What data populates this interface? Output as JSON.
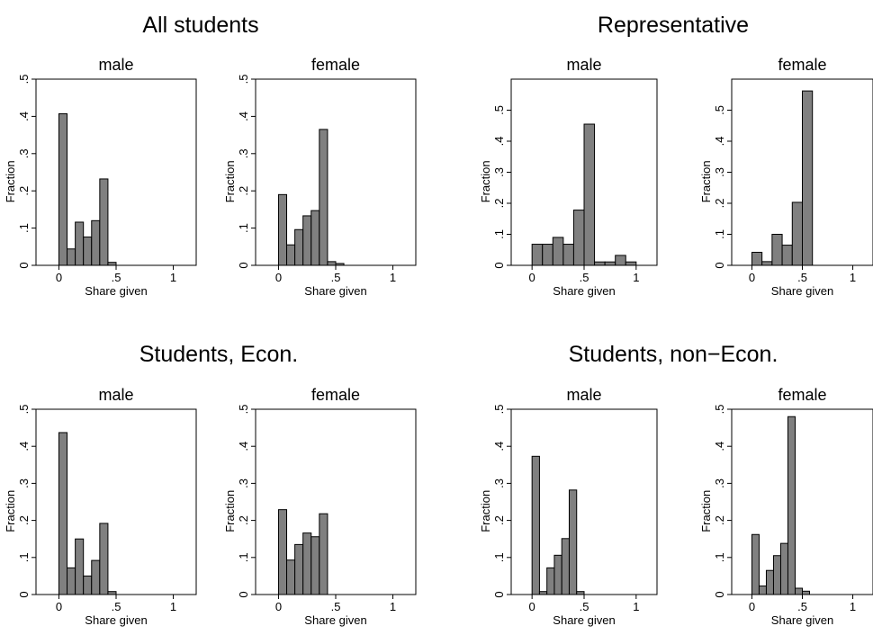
{
  "chart_data": [
    {
      "type": "bar",
      "title": "All students",
      "panels": [
        {
          "title": "male",
          "xlabel": "Share given",
          "ylabel": "Fraction",
          "xlim": [
            0,
            1
          ],
          "ylim": [
            0,
            0.5
          ],
          "xticks": [
            "0",
            ".5",
            "1"
          ],
          "yticks": [
            "0",
            ".1",
            ".2",
            ".3",
            ".4",
            ".5"
          ],
          "bins": [
            0,
            0.0714,
            0.1429,
            0.2143,
            0.2857,
            0.3571,
            0.4286,
            0.5,
            0.5714
          ],
          "values": [
            0.407,
            0.044,
            0.116,
            0.076,
            0.12,
            0.232,
            0.008,
            0.0
          ]
        },
        {
          "title": "female",
          "xlabel": "Share given",
          "ylabel": "Fraction",
          "xlim": [
            0,
            1
          ],
          "ylim": [
            0,
            0.5
          ],
          "xticks": [
            "0",
            ".5",
            "1"
          ],
          "yticks": [
            "0",
            ".1",
            ".2",
            ".3",
            ".4",
            ".5"
          ],
          "bins": [
            0,
            0.0714,
            0.1429,
            0.2143,
            0.2857,
            0.3571,
            0.4286,
            0.5,
            0.5714,
            0.6429
          ],
          "values": [
            0.19,
            0.055,
            0.096,
            0.133,
            0.147,
            0.365,
            0.01,
            0.005,
            0.0
          ]
        }
      ]
    },
    {
      "type": "bar",
      "title": "Representative",
      "panels": [
        {
          "title": "male",
          "xlabel": "Share given",
          "ylabel": "Fraction",
          "xlim": [
            0,
            1
          ],
          "ylim": [
            0,
            0.6
          ],
          "xticks": [
            "0",
            ".5",
            "1"
          ],
          "yticks": [
            "0",
            ".1",
            ".2",
            ".3",
            ".4",
            ".5"
          ],
          "bins": [
            0,
            0.1,
            0.2,
            0.3,
            0.4,
            0.5,
            0.6,
            0.7,
            0.8,
            0.9,
            1.0
          ],
          "values": [
            0.068,
            0.068,
            0.09,
            0.068,
            0.178,
            0.455,
            0.011,
            0.011,
            0.032,
            0.011,
            0.011
          ]
        },
        {
          "title": "female",
          "xlabel": "Share given",
          "ylabel": "Fraction",
          "xlim": [
            0,
            1
          ],
          "ylim": [
            0,
            0.6
          ],
          "xticks": [
            "0",
            ".5",
            "1"
          ],
          "yticks": [
            "0",
            ".1",
            ".2",
            ".3",
            ".4",
            ".5"
          ],
          "bins": [
            0,
            0.1,
            0.2,
            0.3,
            0.4,
            0.5,
            0.6
          ],
          "values": [
            0.042,
            0.012,
            0.1,
            0.065,
            0.203,
            0.562,
            0.012
          ]
        }
      ]
    },
    {
      "type": "bar",
      "title": "Students, Econ.",
      "panels": [
        {
          "title": "male",
          "xlabel": "Share given",
          "ylabel": "Fraction",
          "xlim": [
            0,
            1
          ],
          "ylim": [
            0,
            0.5
          ],
          "xticks": [
            "0",
            ".5",
            "1"
          ],
          "yticks": [
            "0",
            ".1",
            ".2",
            ".3",
            ".4",
            ".5"
          ],
          "bins": [
            0,
            0.0714,
            0.1429,
            0.2143,
            0.2857,
            0.3571,
            0.4286,
            0.5,
            0.5714
          ],
          "values": [
            0.437,
            0.072,
            0.15,
            0.05,
            0.092,
            0.192,
            0.008,
            0.0
          ]
        },
        {
          "title": "female",
          "xlabel": "Share given",
          "ylabel": "Fraction",
          "xlim": [
            0,
            1
          ],
          "ylim": [
            0,
            0.5
          ],
          "xticks": [
            "0",
            ".5",
            "1"
          ],
          "yticks": [
            "0",
            ".1",
            ".2",
            ".3",
            ".4",
            ".5"
          ],
          "bins": [
            0,
            0.0714,
            0.1429,
            0.2143,
            0.2857,
            0.3571,
            0.4286,
            0.5
          ],
          "values": [
            0.229,
            0.093,
            0.135,
            0.166,
            0.156,
            0.218,
            0.0
          ]
        }
      ]
    },
    {
      "type": "bar",
      "title": "Students, non−Econ.",
      "panels": [
        {
          "title": "male",
          "xlabel": "Share given",
          "ylabel": "Fraction",
          "xlim": [
            0,
            1
          ],
          "ylim": [
            0,
            0.5
          ],
          "xticks": [
            "0",
            ".5",
            "1"
          ],
          "yticks": [
            "0",
            ".1",
            ".2",
            ".3",
            ".4",
            ".5"
          ],
          "bins": [
            0,
            0.0714,
            0.1429,
            0.2143,
            0.2857,
            0.3571,
            0.4286,
            0.5,
            0.5714
          ],
          "values": [
            0.373,
            0.008,
            0.072,
            0.106,
            0.151,
            0.282,
            0.008,
            0.0
          ]
        },
        {
          "title": "female",
          "xlabel": "Share given",
          "ylabel": "Fraction",
          "xlim": [
            0,
            1
          ],
          "ylim": [
            0,
            0.5
          ],
          "xticks": [
            "0",
            ".5",
            "1"
          ],
          "yticks": [
            "0",
            ".1",
            ".2",
            ".3",
            ".4",
            ".5"
          ],
          "bins": [
            0,
            0.0714,
            0.1429,
            0.2143,
            0.2857,
            0.3571,
            0.4286,
            0.5,
            0.5714,
            0.6429,
            0.7143
          ],
          "values": [
            0.162,
            0.023,
            0.065,
            0.105,
            0.138,
            0.48,
            0.017,
            0.009,
            0.0,
            0.0
          ]
        }
      ]
    }
  ]
}
